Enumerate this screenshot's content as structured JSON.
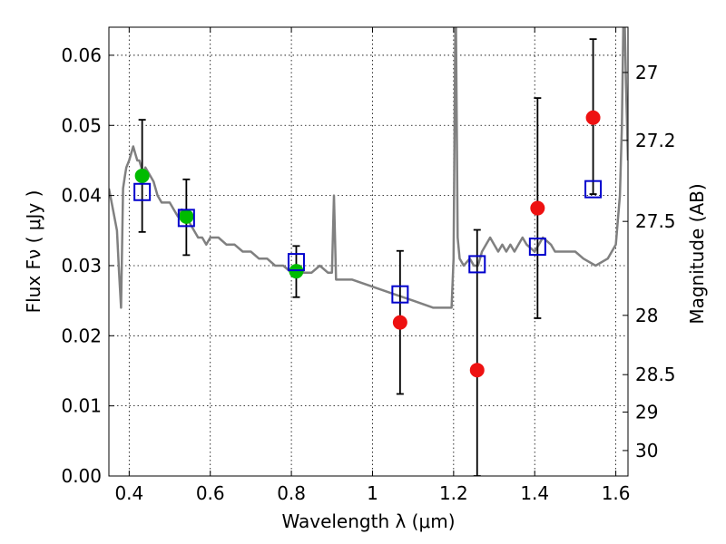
{
  "chart_data": {
    "type": "scatter",
    "title": "",
    "xlabel": "Wavelength  λ (μm)",
    "ylabel": "Flux  Fν  ( μJy )",
    "y2label": "Magnitude (AB)",
    "xlim": [
      0.35,
      1.63
    ],
    "ylim": [
      0.0,
      0.064
    ],
    "grid": true,
    "x_ticks": [
      0.4,
      0.6,
      0.8,
      1.0,
      1.2,
      1.4,
      1.6
    ],
    "x_tick_labels": [
      "0.4",
      "0.6",
      "0.8",
      "1",
      "1.2",
      "1.4",
      "1.6"
    ],
    "y_ticks": [
      0.0,
      0.01,
      0.02,
      0.03,
      0.04,
      0.05,
      0.06
    ],
    "y_tick_labels": [
      "0.00",
      "0.01",
      "0.02",
      "0.03",
      "0.04",
      "0.05",
      "0.06"
    ],
    "y2_ticks": [
      27,
      27.2,
      27.5,
      28,
      28.5,
      29,
      30
    ],
    "y2_tick_labels": [
      "27",
      "27.2",
      "27.5",
      "28",
      "28.5",
      "29",
      "30"
    ],
    "colors": {
      "model": "#808080",
      "optical": "#00bb00",
      "infrared": "#ee1111",
      "model_bands": "#0000cc",
      "errorbar": "#000000"
    },
    "series": [
      {
        "kind": "line",
        "x": [
          0.35,
          0.36,
          0.37,
          0.375,
          0.38,
          0.385,
          0.39,
          0.393,
          0.4,
          0.41,
          0.415,
          0.42,
          0.425,
          0.43,
          0.435,
          0.44,
          0.45,
          0.46,
          0.47,
          0.48,
          0.49,
          0.5,
          0.51,
          0.52,
          0.53,
          0.54,
          0.55,
          0.56,
          0.57,
          0.58,
          0.59,
          0.6,
          0.62,
          0.64,
          0.66,
          0.68,
          0.7,
          0.72,
          0.74,
          0.76,
          0.78,
          0.8,
          0.81,
          0.82,
          0.83,
          0.85,
          0.87,
          0.89,
          0.9,
          0.905,
          0.91,
          0.92,
          0.95,
          1.0,
          1.05,
          1.1,
          1.15,
          1.18,
          1.195,
          1.2,
          1.205,
          1.21,
          1.215,
          1.225,
          1.24,
          1.25,
          1.26,
          1.27,
          1.28,
          1.29,
          1.3,
          1.31,
          1.32,
          1.33,
          1.34,
          1.35,
          1.36,
          1.37,
          1.38,
          1.4,
          1.42,
          1.44,
          1.45,
          1.47,
          1.5,
          1.52,
          1.55,
          1.58,
          1.6,
          1.61,
          1.615,
          1.62,
          1.625,
          1.63
        ],
        "y": [
          0.041,
          0.038,
          0.035,
          0.029,
          0.024,
          0.041,
          0.043,
          0.044,
          0.045,
          0.047,
          0.046,
          0.045,
          0.045,
          0.044,
          0.043,
          0.044,
          0.043,
          0.042,
          0.04,
          0.039,
          0.039,
          0.039,
          0.038,
          0.037,
          0.038,
          0.037,
          0.036,
          0.035,
          0.034,
          0.034,
          0.033,
          0.034,
          0.034,
          0.033,
          0.033,
          0.032,
          0.032,
          0.031,
          0.031,
          0.03,
          0.03,
          0.029,
          0.03,
          0.03,
          0.029,
          0.029,
          0.03,
          0.029,
          0.029,
          0.04,
          0.028,
          0.028,
          0.028,
          0.027,
          0.026,
          0.025,
          0.024,
          0.024,
          0.024,
          0.031,
          0.07,
          0.034,
          0.031,
          0.03,
          0.031,
          0.03,
          0.03,
          0.032,
          0.033,
          0.034,
          0.033,
          0.032,
          0.033,
          0.032,
          0.033,
          0.032,
          0.033,
          0.034,
          0.033,
          0.032,
          0.034,
          0.033,
          0.032,
          0.032,
          0.032,
          0.031,
          0.03,
          0.031,
          0.033,
          0.04,
          0.05,
          0.07,
          0.056,
          0.045
        ]
      },
      {
        "kind": "points",
        "marker": "circle",
        "x": [
          0.432,
          0.541,
          0.812
        ],
        "y": [
          0.0428,
          0.037,
          0.0292
        ],
        "yerr_low": [
          0.0348,
          0.0315,
          0.0255
        ],
        "yerr_high": [
          0.0508,
          0.0423,
          0.0328
        ]
      },
      {
        "kind": "points",
        "marker": "circle",
        "x": [
          1.068,
          1.258,
          1.407,
          1.544
        ],
        "y": [
          0.0219,
          0.0151,
          0.0382,
          0.0511
        ],
        "yerr_low": [
          0.0117,
          0.0,
          0.0225,
          0.0402
        ],
        "yerr_high": [
          0.0321,
          0.0351,
          0.0539,
          0.0623
        ]
      },
      {
        "kind": "points",
        "marker": "square",
        "x": [
          0.432,
          0.541,
          0.812,
          1.068,
          1.258,
          1.407,
          1.544
        ],
        "y": [
          0.0405,
          0.0368,
          0.0305,
          0.0259,
          0.0302,
          0.0327,
          0.0409
        ]
      }
    ]
  }
}
